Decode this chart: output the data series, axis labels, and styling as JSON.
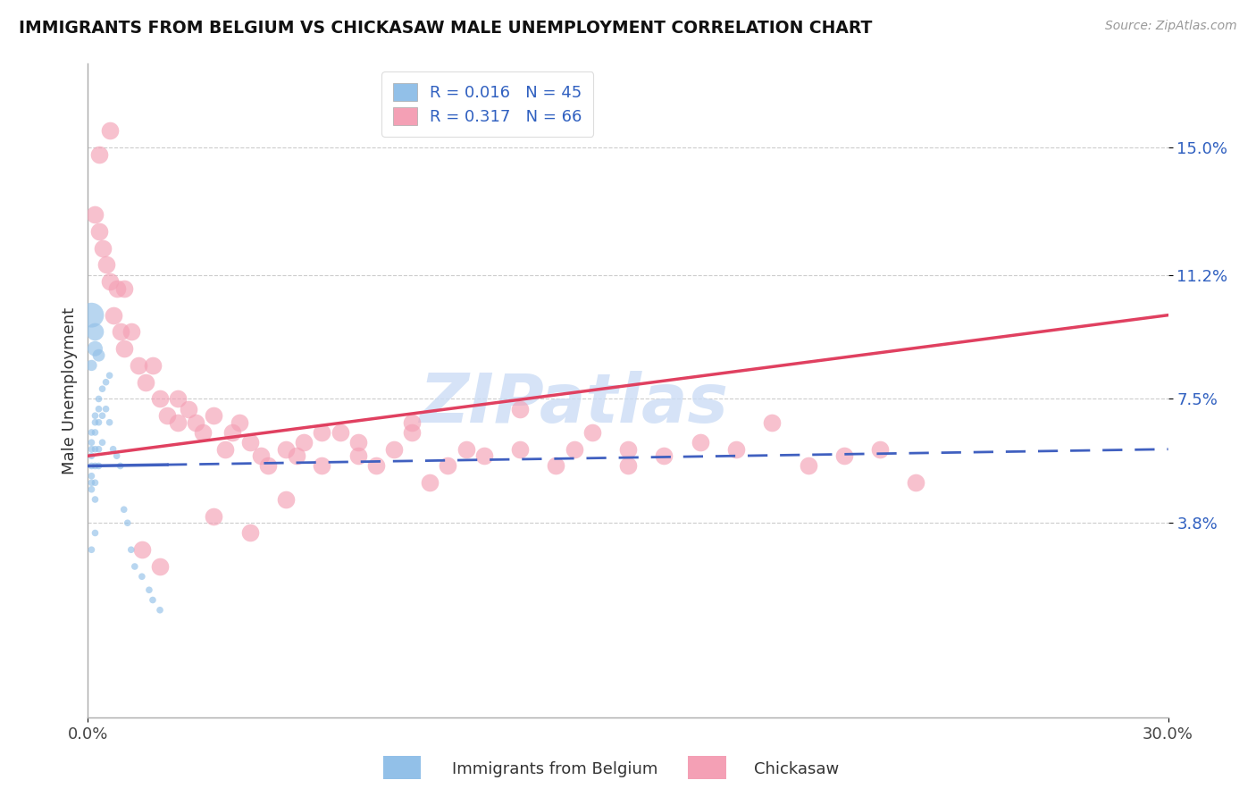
{
  "title": "IMMIGRANTS FROM BELGIUM VS CHICKASAW MALE UNEMPLOYMENT CORRELATION CHART",
  "source": "Source: ZipAtlas.com",
  "xlabel_blue": "Immigrants from Belgium",
  "xlabel_pink": "Chickasaw",
  "ylabel": "Male Unemployment",
  "xlim": [
    0.0,
    0.3
  ],
  "ylim": [
    -0.02,
    0.175
  ],
  "yticks": [
    0.038,
    0.075,
    0.112,
    0.15
  ],
  "ytick_labels": [
    "3.8%",
    "7.5%",
    "11.2%",
    "15.0%"
  ],
  "xticks": [
    0.0,
    0.3
  ],
  "xtick_labels": [
    "0.0%",
    "30.0%"
  ],
  "blue_R": "0.016",
  "blue_N": "45",
  "pink_R": "0.317",
  "pink_N": "66",
  "blue_color": "#92C0E8",
  "pink_color": "#F4A0B5",
  "blue_line_color": "#4060C0",
  "pink_line_color": "#E04060",
  "watermark": "ZIPatlas",
  "watermark_color": "#CCDDF5",
  "blue_scatter_x": [
    0.001,
    0.001,
    0.001,
    0.001,
    0.001,
    0.001,
    0.001,
    0.001,
    0.002,
    0.002,
    0.002,
    0.002,
    0.002,
    0.002,
    0.002,
    0.003,
    0.003,
    0.003,
    0.003,
    0.003,
    0.004,
    0.004,
    0.004,
    0.005,
    0.005,
    0.006,
    0.006,
    0.007,
    0.008,
    0.009,
    0.01,
    0.011,
    0.012,
    0.013,
    0.015,
    0.017,
    0.018,
    0.02,
    0.001,
    0.002,
    0.002,
    0.003,
    0.001,
    0.002,
    0.001
  ],
  "blue_scatter_y": [
    0.055,
    0.06,
    0.062,
    0.065,
    0.058,
    0.052,
    0.05,
    0.048,
    0.068,
    0.07,
    0.065,
    0.06,
    0.055,
    0.05,
    0.045,
    0.075,
    0.072,
    0.068,
    0.06,
    0.055,
    0.078,
    0.07,
    0.062,
    0.08,
    0.072,
    0.082,
    0.068,
    0.06,
    0.058,
    0.055,
    0.042,
    0.038,
    0.03,
    0.025,
    0.022,
    0.018,
    0.015,
    0.012,
    0.1,
    0.095,
    0.09,
    0.088,
    0.085,
    0.035,
    0.03
  ],
  "blue_scatter_size": [
    30,
    30,
    30,
    30,
    30,
    30,
    30,
    30,
    30,
    30,
    30,
    30,
    30,
    30,
    30,
    30,
    30,
    30,
    30,
    30,
    30,
    30,
    30,
    30,
    30,
    30,
    30,
    30,
    30,
    30,
    30,
    30,
    30,
    30,
    30,
    30,
    30,
    30,
    400,
    200,
    150,
    100,
    80,
    30,
    30
  ],
  "pink_scatter_x": [
    0.002,
    0.003,
    0.004,
    0.005,
    0.006,
    0.007,
    0.008,
    0.009,
    0.01,
    0.012,
    0.014,
    0.016,
    0.018,
    0.02,
    0.022,
    0.025,
    0.028,
    0.03,
    0.032,
    0.035,
    0.038,
    0.04,
    0.042,
    0.045,
    0.048,
    0.05,
    0.055,
    0.058,
    0.06,
    0.065,
    0.07,
    0.075,
    0.08,
    0.085,
    0.09,
    0.095,
    0.1,
    0.11,
    0.12,
    0.13,
    0.14,
    0.15,
    0.16,
    0.17,
    0.18,
    0.19,
    0.2,
    0.21,
    0.22,
    0.23,
    0.003,
    0.006,
    0.01,
    0.015,
    0.02,
    0.025,
    0.035,
    0.045,
    0.055,
    0.065,
    0.075,
    0.09,
    0.105,
    0.12,
    0.135,
    0.15
  ],
  "pink_scatter_y": [
    0.13,
    0.125,
    0.12,
    0.115,
    0.11,
    0.1,
    0.108,
    0.095,
    0.09,
    0.095,
    0.085,
    0.08,
    0.085,
    0.075,
    0.07,
    0.075,
    0.072,
    0.068,
    0.065,
    0.07,
    0.06,
    0.065,
    0.068,
    0.062,
    0.058,
    0.055,
    0.06,
    0.058,
    0.062,
    0.055,
    0.065,
    0.058,
    0.055,
    0.06,
    0.065,
    0.05,
    0.055,
    0.058,
    0.06,
    0.055,
    0.065,
    0.06,
    0.058,
    0.062,
    0.06,
    0.068,
    0.055,
    0.058,
    0.06,
    0.05,
    0.148,
    0.155,
    0.108,
    0.03,
    0.025,
    0.068,
    0.04,
    0.035,
    0.045,
    0.065,
    0.062,
    0.068,
    0.06,
    0.072,
    0.06,
    0.055
  ],
  "blue_line_start_x": 0.0,
  "blue_line_end_x": 0.3,
  "blue_line_start_y": 0.055,
  "blue_line_end_y": 0.06,
  "pink_line_start_x": 0.0,
  "pink_line_end_x": 0.3,
  "pink_line_start_y": 0.058,
  "pink_line_end_y": 0.1
}
